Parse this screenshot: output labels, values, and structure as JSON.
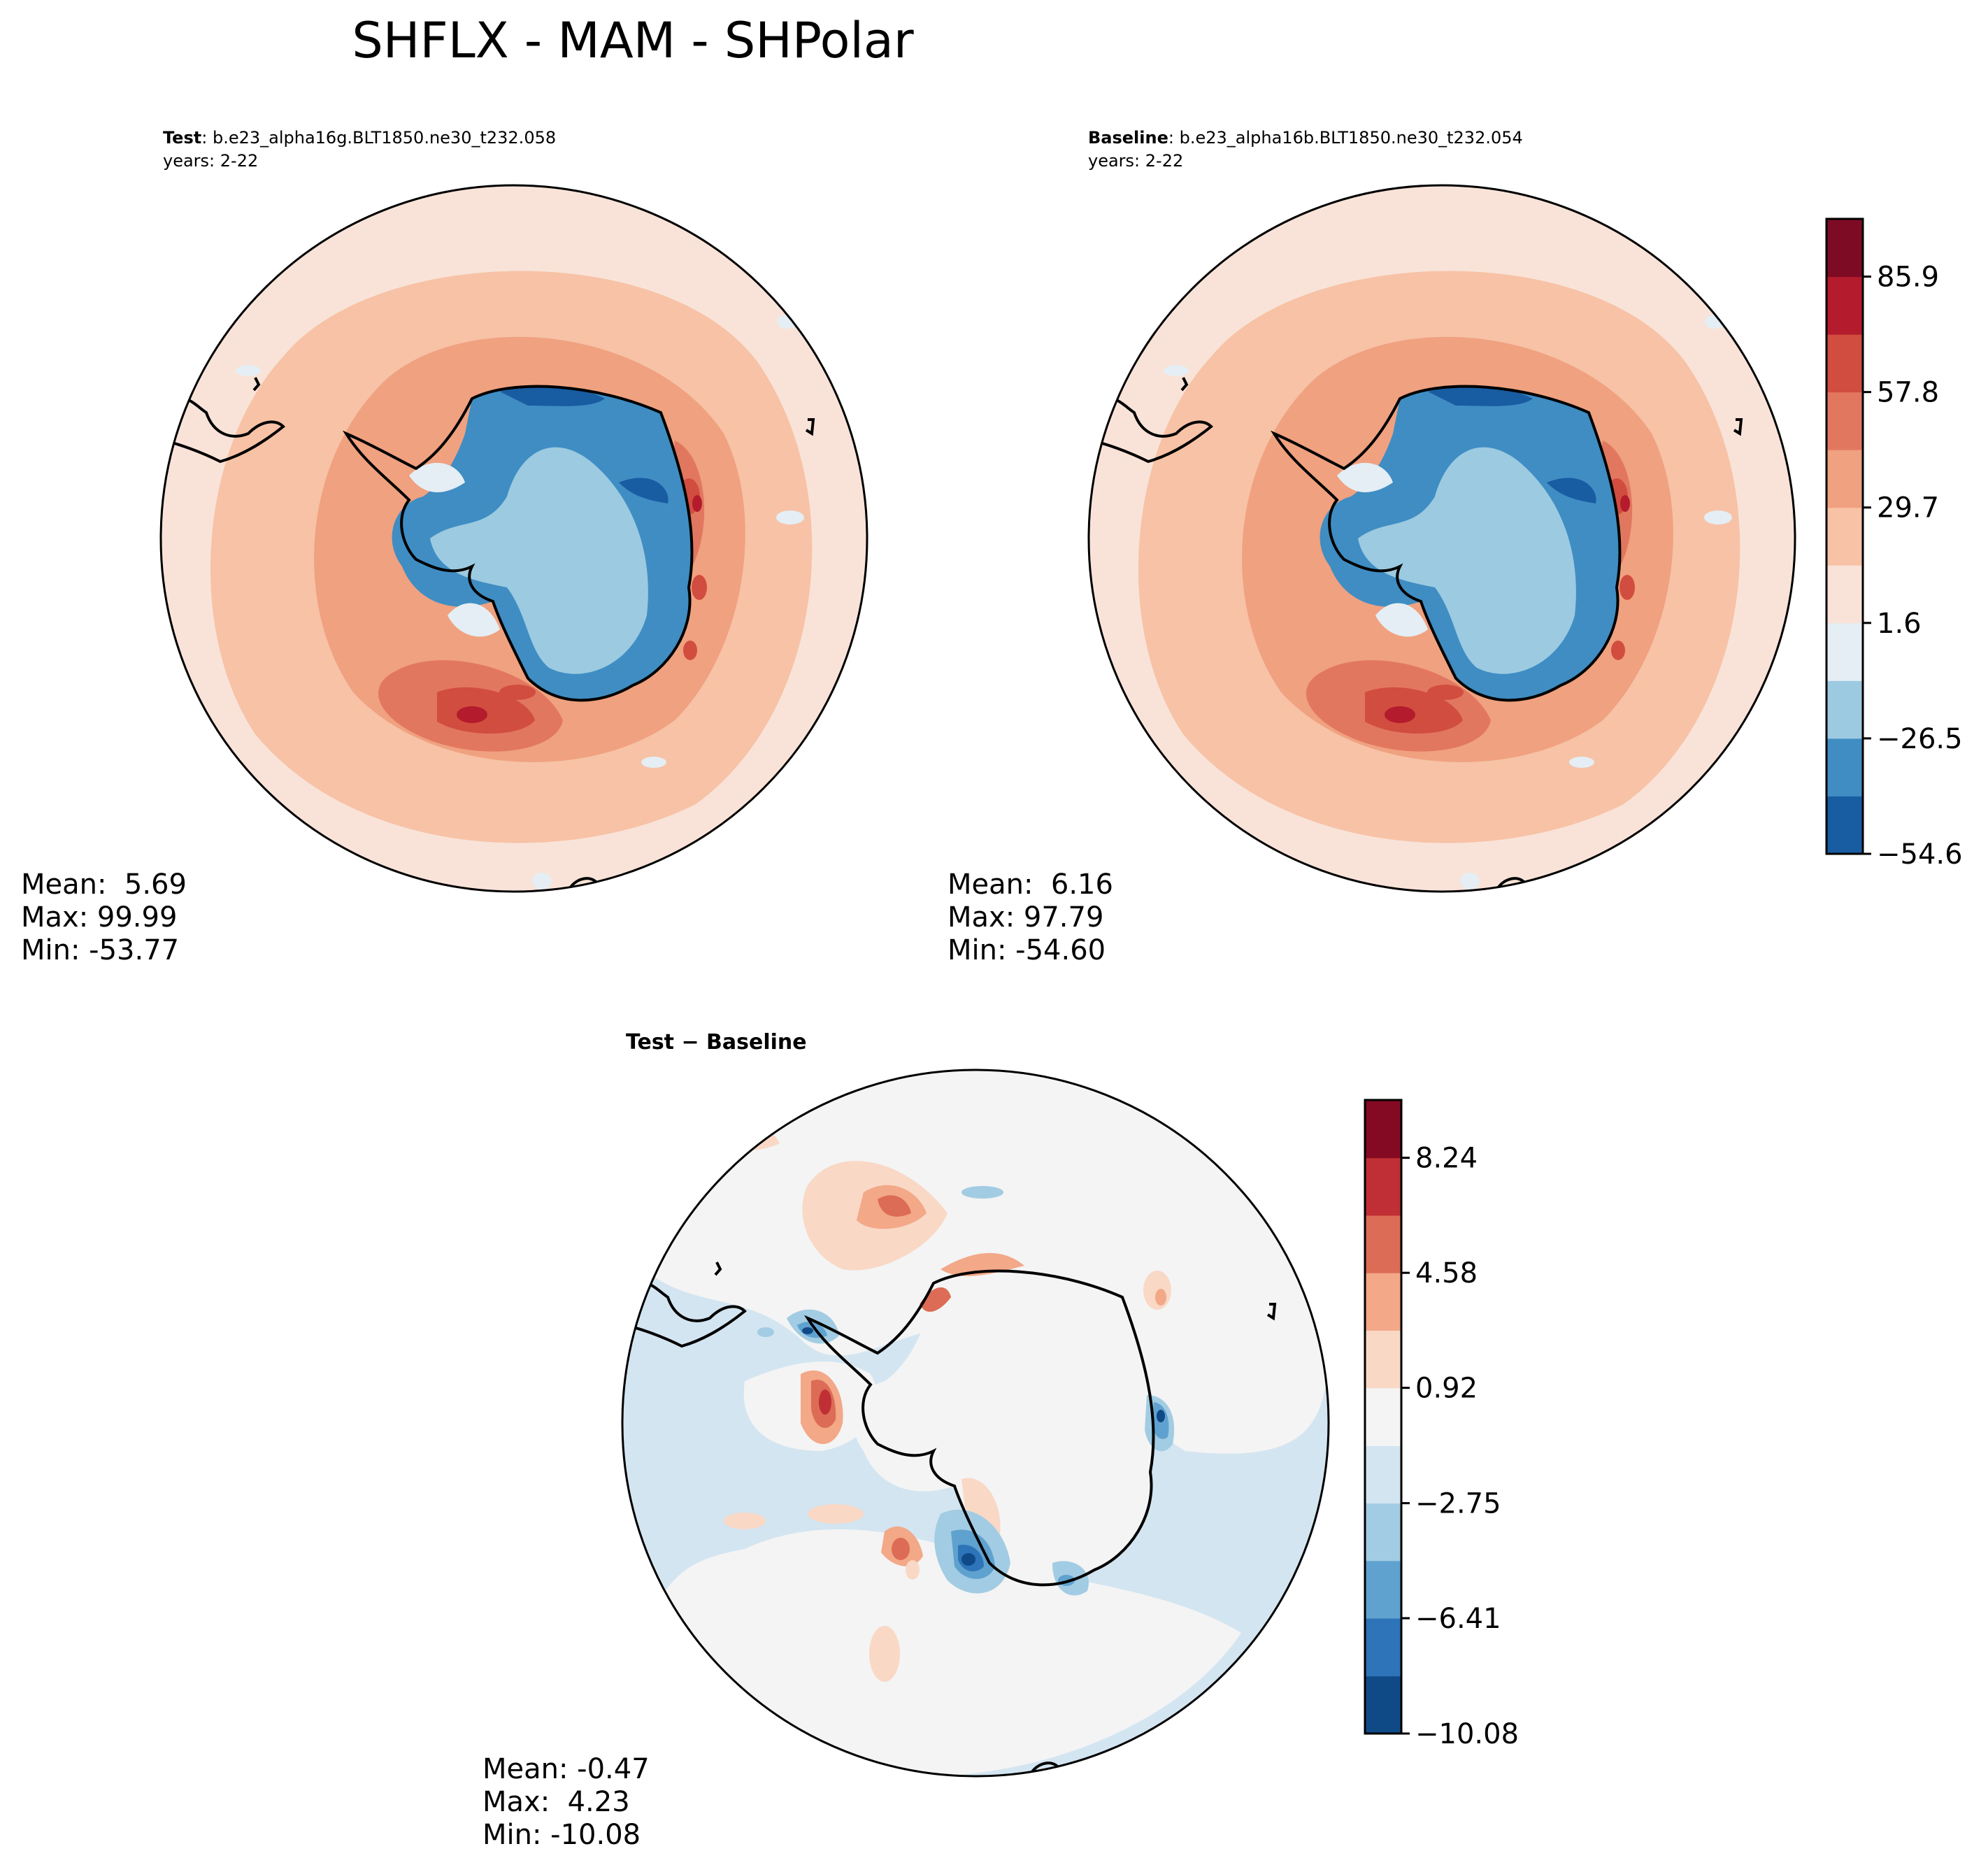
{
  "figure": {
    "title": "SHFLX - MAM - SHPolar"
  },
  "chart_data": [
    {
      "type": "polar-contour-map",
      "panel": "test",
      "title_bold": "Test",
      "title_sep": ":",
      "case": "b.e23_alpha16g.BLT1850.ne30_t232.058",
      "years": "years: 2-22",
      "stats": {
        "mean": "Mean:  5.69",
        "max": "Max: 99.99",
        "min": "Min: -53.77"
      }
    },
    {
      "type": "polar-contour-map",
      "panel": "baseline",
      "title_bold": "Baseline",
      "title_sep": ":",
      "case": "b.e23_alpha16b.BLT1850.ne30_t232.054",
      "years": "years: 2-22",
      "stats": {
        "mean": "Mean:  6.16",
        "max": "Max: 97.79",
        "min": "Min: -54.60"
      },
      "colorbar": {
        "levels": [
          -54.6,
          -40.55,
          -26.5,
          -12.45,
          1.6,
          15.65,
          29.7,
          43.75,
          57.8,
          71.85,
          85.9,
          99.95
        ],
        "tick_labels": [
          "85.9",
          "57.8",
          "29.7",
          "1.6",
          "−26.5",
          "−54.6"
        ],
        "colors": [
          "#185ca2",
          "#3f8dc3",
          "#9ccae1",
          "#e4eef4",
          "#f9e3d8",
          "#f7c2a6",
          "#f0a17f",
          "#e27760",
          "#d14d40",
          "#b41b2c",
          "#7d0b24"
        ]
      }
    },
    {
      "type": "polar-contour-map",
      "panel": "difference",
      "title_bold": "Test − Baseline",
      "stats": {
        "mean": "Mean: -0.47",
        "max": "Max:  4.23",
        "min": "Min: -10.08"
      },
      "colorbar": {
        "levels": [
          -10.08,
          -8.25,
          -6.41,
          -4.58,
          -2.75,
          -0.92,
          0.92,
          2.75,
          4.58,
          6.41,
          8.24,
          10.08
        ],
        "tick_labels": [
          "8.24",
          "4.58",
          "0.92",
          "−2.75",
          "−6.41",
          "−10.08"
        ],
        "colors": [
          "#0f4a87",
          "#2e74b8",
          "#5fa2cf",
          "#a2cce3",
          "#d3e5f1",
          "#f4f4f4",
          "#f9d8c6",
          "#f3a888",
          "#dc6c55",
          "#bf2f35",
          "#830a22"
        ]
      }
    }
  ]
}
